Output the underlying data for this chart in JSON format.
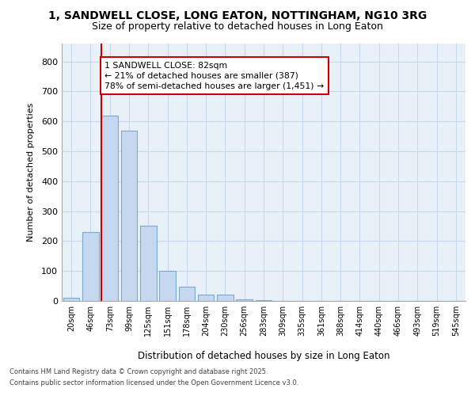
{
  "title_line1": "1, SANDWELL CLOSE, LONG EATON, NOTTINGHAM, NG10 3RG",
  "title_line2": "Size of property relative to detached houses in Long Eaton",
  "xlabel": "Distribution of detached houses by size in Long Eaton",
  "ylabel": "Number of detached properties",
  "categories": [
    "20sqm",
    "46sqm",
    "73sqm",
    "99sqm",
    "125sqm",
    "151sqm",
    "178sqm",
    "204sqm",
    "230sqm",
    "256sqm",
    "283sqm",
    "309sqm",
    "335sqm",
    "361sqm",
    "388sqm",
    "414sqm",
    "440sqm",
    "466sqm",
    "493sqm",
    "519sqm",
    "545sqm"
  ],
  "values": [
    10,
    230,
    620,
    570,
    252,
    100,
    48,
    20,
    22,
    5,
    2,
    0,
    0,
    0,
    0,
    0,
    0,
    0,
    0,
    0,
    0
  ],
  "bar_color": "#c5d8f0",
  "bar_edge_color": "#7aaad0",
  "vline_color": "#cc0000",
  "annotation_text": "1 SANDWELL CLOSE: 82sqm\n← 21% of detached houses are smaller (387)\n78% of semi-detached houses are larger (1,451) →",
  "annotation_box_color": "#cc0000",
  "ylim": [
    0,
    860
  ],
  "yticks": [
    0,
    100,
    200,
    300,
    400,
    500,
    600,
    700,
    800
  ],
  "grid_color": "#c8d8ee",
  "bg_color": "#e8f0f8",
  "footer_line1": "Contains HM Land Registry data © Crown copyright and database right 2025.",
  "footer_line2": "Contains public sector information licensed under the Open Government Licence v3.0."
}
